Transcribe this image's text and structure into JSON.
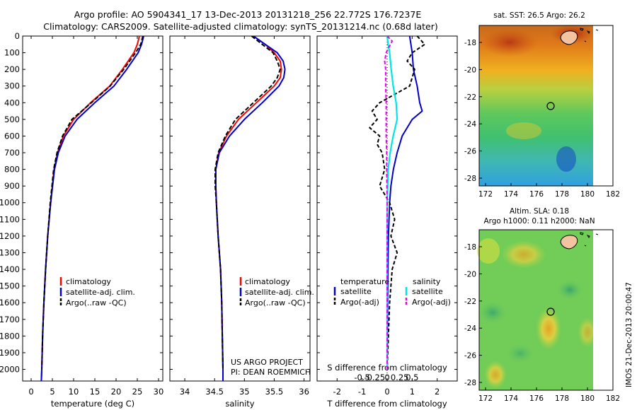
{
  "title_line1": "Argo profile: AO 5904341_17 13-Dec-2013 20131218_256 22.772S 176.7237E",
  "title_line2": "Climatology: CARS2009. Satellite-adjusted climatology: synTS_20131214.nc (0.68d later)",
  "depth_ticks": [
    "0",
    "100",
    "200",
    "300",
    "400",
    "500",
    "600",
    "700",
    "800",
    "900",
    "1000",
    "1100",
    "1200",
    "1300",
    "1400",
    "1500",
    "1600",
    "1700",
    "1800",
    "1900",
    "2000"
  ],
  "legend_profile": {
    "climatology": "climatology",
    "satellite": "satellite-adj. clim.",
    "argo": "Argo(..raw -QC)"
  },
  "legend_diff": {
    "temp_header": "temperature",
    "sal_header": "salinity",
    "satellite": "satellite",
    "argo": "Argo(-adj)"
  },
  "credit": {
    "line1": "US ARGO PROJECT",
    "line2": "PI: DEAN ROEMMICH"
  },
  "diff_labels": {
    "s_label": "S difference from climatology",
    "t_label": "T difference from climatology",
    "s_ticks": [
      "-0.5",
      "-0.25",
      "0",
      "0.25",
      "0.5"
    ]
  },
  "map_top": {
    "title": "sat. SST: 26.5 Argo: 26.2"
  },
  "map_bottom": {
    "title1": "Altim. SLA: 0.18",
    "title2": "Argo h1000: 0.11 h2000: NaN"
  },
  "map_lat_ticks": [
    "-18",
    "-20",
    "-22",
    "-24",
    "-26",
    "-28"
  ],
  "map_lon_ticks": [
    "172",
    "174",
    "176",
    "178",
    "180",
    "182"
  ],
  "side_stamp": "IMOS 21-Dec-2013 20:00:47",
  "colors": {
    "climatology": "#ff0000",
    "satellite": "#0000cc",
    "argo": "#000000",
    "sat_sal": "#00e5e5",
    "argo_sal": "#ee00ee"
  },
  "chart_data": [
    {
      "type": "line",
      "xlabel": "temperature (deg C)",
      "ylabel": "",
      "xlim": [
        -2,
        31
      ],
      "ylim": [
        2070,
        0
      ],
      "x_ticks": [
        "0",
        "5",
        "10",
        "15",
        "20",
        "25",
        "30"
      ],
      "series": [
        {
          "name": "climatology",
          "depth": [
            0,
            50,
            100,
            200,
            300,
            400,
            500,
            600,
            700,
            800,
            1000,
            1200,
            1400,
            1600,
            1800,
            2000,
            2070
          ],
          "values": [
            25.5,
            25.0,
            24.2,
            21.5,
            18.5,
            14.0,
            10.0,
            7.6,
            6.2,
            5.4,
            4.6,
            3.9,
            3.4,
            3.0,
            2.7,
            2.5,
            2.4
          ]
        },
        {
          "name": "satellite-adj. clim.",
          "depth": [
            0,
            50,
            100,
            200,
            300,
            400,
            500,
            600,
            700,
            800,
            1000,
            1200,
            1400,
            1600,
            1800,
            2000,
            2070
          ],
          "values": [
            26.5,
            26.0,
            25.2,
            22.5,
            19.5,
            15.0,
            10.8,
            8.0,
            6.4,
            5.5,
            4.6,
            3.9,
            3.4,
            3.0,
            2.7,
            2.5,
            2.4
          ]
        },
        {
          "name": "Argo(..raw -QC)",
          "depth": [
            0,
            50,
            100,
            200,
            300,
            400,
            500,
            600,
            700,
            800,
            1000,
            1200,
            1400,
            1600,
            1800,
            2000
          ],
          "values": [
            26.3,
            25.8,
            24.6,
            21.8,
            18.6,
            14.2,
            9.6,
            7.4,
            6.1,
            5.3,
            4.5,
            3.9,
            3.4,
            3.0,
            2.7,
            2.5
          ]
        }
      ]
    },
    {
      "type": "line",
      "xlabel": "salinity",
      "ylabel": "",
      "xlim": [
        33.75,
        36.1
      ],
      "ylim": [
        2070,
        0
      ],
      "x_ticks": [
        "34",
        "34.5",
        "35",
        "35.5",
        "36"
      ],
      "series": [
        {
          "name": "climatology",
          "depth": [
            0,
            50,
            100,
            150,
            200,
            250,
            300,
            400,
            500,
            600,
            700,
            800,
            900,
            1000,
            1200,
            1400,
            1600,
            1800,
            2000,
            2070
          ],
          "values": [
            35.15,
            35.35,
            35.5,
            35.6,
            35.62,
            35.6,
            35.5,
            35.2,
            34.9,
            34.7,
            34.57,
            34.52,
            34.52,
            34.53,
            34.56,
            34.6,
            34.62,
            34.63,
            34.64,
            34.64
          ]
        },
        {
          "name": "satellite-adj. clim.",
          "depth": [
            0,
            50,
            100,
            150,
            200,
            250,
            300,
            400,
            500,
            600,
            700,
            800,
            900,
            1000,
            1200,
            1400,
            1600,
            1800,
            2000,
            2070
          ],
          "values": [
            35.15,
            35.35,
            35.55,
            35.65,
            35.68,
            35.66,
            35.58,
            35.3,
            35.0,
            34.75,
            34.58,
            34.52,
            34.52,
            34.53,
            34.56,
            34.6,
            34.62,
            34.63,
            34.64,
            34.64
          ]
        },
        {
          "name": "Argo(..raw -QC)",
          "depth": [
            0,
            50,
            100,
            150,
            200,
            250,
            300,
            400,
            500,
            600,
            700,
            800,
            900,
            1000,
            1200,
            1400,
            1600,
            1800,
            2000
          ],
          "values": [
            35.12,
            35.3,
            35.48,
            35.55,
            35.6,
            35.55,
            35.45,
            35.15,
            34.85,
            34.68,
            34.56,
            34.51,
            34.51,
            34.53,
            34.56,
            34.6,
            34.62,
            34.63,
            34.64
          ]
        }
      ]
    },
    {
      "type": "line",
      "xlabel": "T difference from climatology",
      "ylabel": "",
      "xlim": [
        -2.8,
        2.8
      ],
      "ylim": [
        2070,
        0
      ],
      "x_ticks": [
        "-2",
        "-1",
        "0",
        "1",
        "2"
      ],
      "series": [
        {
          "name": "satellite",
          "quantity": "temperature",
          "depth": [
            0,
            100,
            200,
            300,
            400,
            450,
            500,
            600,
            700,
            800,
            900,
            1000,
            1200,
            1400,
            1600,
            1800,
            2000
          ],
          "values": [
            0.9,
            1.0,
            1.05,
            1.2,
            1.3,
            1.4,
            1.0,
            0.6,
            0.4,
            0.25,
            0.15,
            0.1,
            0.05,
            0.03,
            0.02,
            0.01,
            0.0
          ]
        },
        {
          "name": "Argo(-adj)",
          "quantity": "temperature",
          "depth": [
            0,
            50,
            100,
            150,
            200,
            300,
            400,
            450,
            500,
            550,
            600,
            650,
            700,
            800,
            900,
            1000,
            1100,
            1200,
            1300,
            1400,
            1600,
            1800,
            2000
          ],
          "values": [
            1.2,
            1.5,
            1.0,
            0.8,
            1.1,
            0.9,
            -0.3,
            -0.6,
            -0.4,
            -0.7,
            -0.3,
            -0.4,
            -0.2,
            -0.1,
            -0.3,
            0.1,
            0.3,
            0.15,
            0.4,
            0.2,
            0.1,
            0.05,
            0.0
          ]
        },
        {
          "name": "satellite",
          "quantity": "salinity",
          "depth": [
            0,
            50,
            100,
            200,
            300,
            400,
            500,
            600,
            700,
            800,
            1000,
            1200,
            1400,
            1600,
            1800,
            2000
          ],
          "values": [
            0.0,
            0.02,
            0.05,
            0.08,
            0.12,
            0.18,
            0.2,
            0.12,
            0.06,
            0.02,
            0.0,
            0.0,
            0.0,
            0.0,
            0.0,
            0.0
          ]
        },
        {
          "name": "Argo(-adj)",
          "quantity": "salinity",
          "depth": [
            0,
            30,
            60,
            100,
            150,
            200,
            300,
            400,
            500,
            600,
            700,
            800,
            1000,
            1200,
            1400,
            1600,
            1800,
            2000
          ],
          "values": [
            0.0,
            0.1,
            0.05,
            -0.02,
            -0.05,
            -0.03,
            -0.03,
            -0.02,
            -0.02,
            -0.02,
            -0.01,
            -0.01,
            0.0,
            0.0,
            0.0,
            0.0,
            0.0,
            0.0
          ]
        }
      ]
    }
  ]
}
